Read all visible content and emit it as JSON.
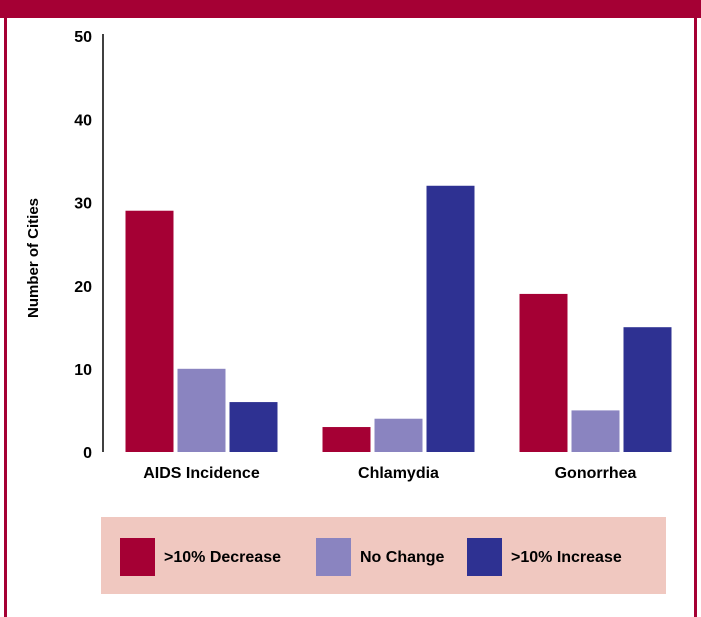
{
  "chart_data": {
    "type": "bar",
    "y_label": "Number of Cities",
    "categories": [
      "AIDS Incidence",
      "Chlamydia",
      "Gonorrhea"
    ],
    "series": [
      {
        "name": ">10% Decrease",
        "color": "#a50034",
        "values": [
          29,
          3,
          19
        ]
      },
      {
        "name": "No Change",
        "color": "#8a84c0",
        "values": [
          10,
          4,
          5
        ]
      },
      {
        "name": ">10% Increase",
        "color": "#2e3192",
        "values": [
          6,
          32,
          15
        ]
      }
    ],
    "ylim": [
      0,
      50
    ],
    "yticks": [
      0,
      10,
      20,
      30,
      40,
      50
    ],
    "grid": false
  }
}
